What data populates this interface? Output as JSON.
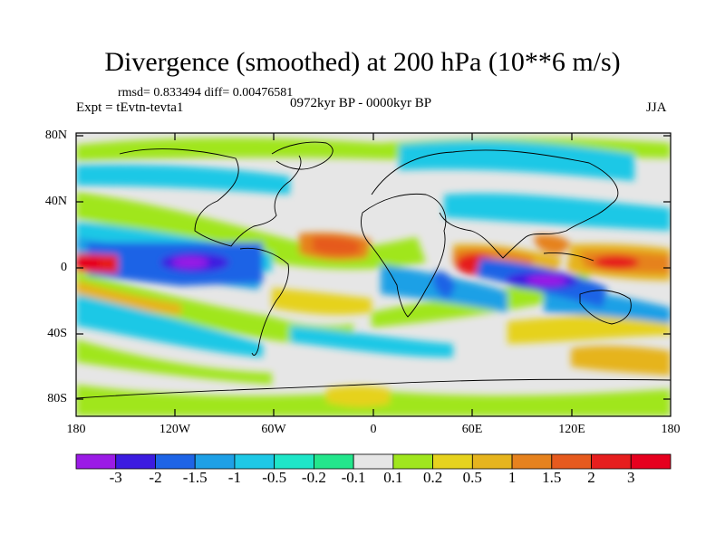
{
  "title": "Divergence (smoothed) at 200 hPa (10**6 m/s)",
  "stats_line": "rmsd= 0.833494 diff= 0.00476581",
  "experiment": "Expt = tEvtn-tevta1",
  "period": "0972kyr BP - 0000kyr BP",
  "season": "JJA",
  "map": {
    "lat_ticks": [
      "80N",
      "40N",
      "0",
      "40S",
      "80S"
    ],
    "lon_ticks": [
      "180",
      "120W",
      "60W",
      "0",
      "60E",
      "120E",
      "180"
    ]
  },
  "colorbar": {
    "labels": [
      "-3",
      "-2",
      "-1.5",
      "-1",
      "-0.5",
      "-0.2",
      "-0.1",
      "0.1",
      "0.2",
      "0.5",
      "1",
      "1.5",
      "2",
      "3"
    ],
    "colors": [
      "#9b1be6",
      "#3c1ce0",
      "#1e64e6",
      "#1ea0e6",
      "#1ec8e6",
      "#1ee6c8",
      "#23e68c",
      "#e6e6e6",
      "#a0e61e",
      "#e6d21e",
      "#e6b41e",
      "#e6821e",
      "#e65a1e",
      "#e61e1e",
      "#e6001e"
    ]
  },
  "anomaly_features": [
    {
      "lon": -110,
      "lat": 2,
      "value": -3,
      "label": "eastern-pacific-minimum"
    },
    {
      "lon": -20,
      "lat": 10,
      "value": 2,
      "label": "west-africa-maximum"
    },
    {
      "lon": 55,
      "lat": 3,
      "value": 3,
      "label": "western-indian-ocean-maximum"
    },
    {
      "lon": 90,
      "lat": -5,
      "value": -3,
      "label": "eastern-indian-ocean-minimum"
    },
    {
      "lon": 150,
      "lat": -2,
      "value": 2,
      "label": "west-pacific-maximum"
    }
  ]
}
